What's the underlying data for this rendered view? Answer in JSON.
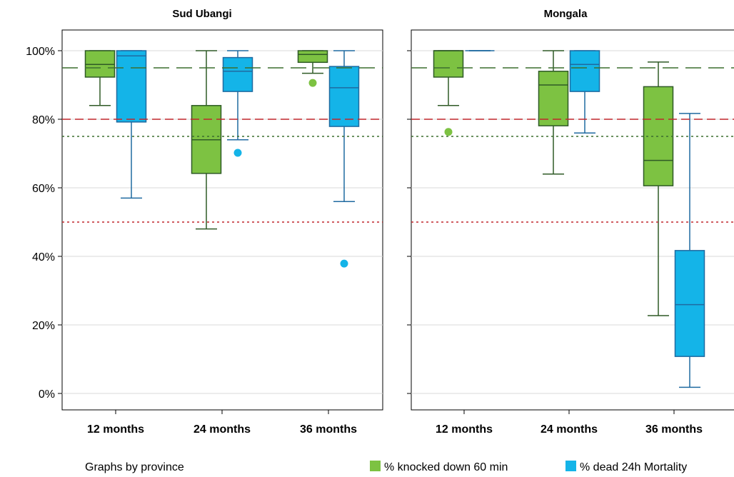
{
  "chart_data": {
    "type": "box",
    "note": "Graphs by province",
    "y_axis": {
      "ylim": [
        0,
        100
      ],
      "ticks": [
        0,
        20,
        40,
        60,
        80,
        100
      ],
      "tick_labels": [
        "0%",
        "20%",
        "40%",
        "60%",
        "80%",
        "100%"
      ]
    },
    "categories": [
      "12 months",
      "24 months",
      "36 months"
    ],
    "series": [
      {
        "name": "% knocked down 60 min",
        "color": "#7dc242",
        "stroke": "#2f5a26"
      },
      {
        "name": "% dead 24h Mortality",
        "color": "#14b4e8",
        "stroke": "#1f6aa0"
      }
    ],
    "reference_lines": [
      {
        "value": 95,
        "color": "#3c6e2f",
        "style": "longdash"
      },
      {
        "value": 80,
        "color": "#c0272d",
        "style": "dash"
      },
      {
        "value": 75,
        "color": "#3c6e2f",
        "style": "dot"
      },
      {
        "value": 50,
        "color": "#c0272d",
        "style": "dot"
      }
    ],
    "panels": [
      {
        "title": "Sud Ubangi",
        "boxes": [
          {
            "category": "12 months",
            "series": 0,
            "min": 84,
            "q1": 92.3,
            "median": 96,
            "q3": 100,
            "max": 100,
            "outliers": []
          },
          {
            "category": "12 months",
            "series": 1,
            "min": 57,
            "q1": 79.2,
            "median": 98.5,
            "q3": 100,
            "max": 100,
            "outliers": []
          },
          {
            "category": "24 months",
            "series": 0,
            "min": 48,
            "q1": 64.2,
            "median": 74,
            "q3": 84,
            "max": 100,
            "outliers": []
          },
          {
            "category": "24 months",
            "series": 1,
            "min": 74,
            "q1": 88.1,
            "median": 94,
            "q3": 98,
            "max": 100,
            "outliers": [
              70.2
            ]
          },
          {
            "category": "36 months",
            "series": 0,
            "min": 93.4,
            "q1": 96.6,
            "median": 98.9,
            "q3": 100,
            "max": 100,
            "outliers": [
              90.6
            ]
          },
          {
            "category": "36 months",
            "series": 1,
            "min": 56,
            "q1": 77.9,
            "median": 89.2,
            "q3": 95.4,
            "max": 100,
            "outliers": [
              37.9
            ]
          }
        ]
      },
      {
        "title": "Mongala",
        "boxes": [
          {
            "category": "12 months",
            "series": 0,
            "min": 84,
            "q1": 92.3,
            "median": 100,
            "q3": 100,
            "max": 100,
            "outliers": [
              76.3
            ]
          },
          {
            "category": "12 months",
            "series": 1,
            "min": 100,
            "q1": 100,
            "median": 100,
            "q3": 100,
            "max": 100,
            "outliers": []
          },
          {
            "category": "24 months",
            "series": 0,
            "min": 64,
            "q1": 78.1,
            "median": 90,
            "q3": 94,
            "max": 100,
            "outliers": []
          },
          {
            "category": "24 months",
            "series": 1,
            "min": 76,
            "q1": 88.1,
            "median": 96,
            "q3": 100,
            "max": 100,
            "outliers": []
          },
          {
            "category": "36 months",
            "series": 0,
            "min": 22.7,
            "q1": 60.6,
            "median": 68,
            "q3": 89.5,
            "max": 96.7,
            "outliers": []
          },
          {
            "category": "36 months",
            "series": 1,
            "min": 1.8,
            "q1": 10.8,
            "median": 25.9,
            "q3": 41.7,
            "max": 81.7,
            "outliers": []
          }
        ]
      }
    ]
  }
}
